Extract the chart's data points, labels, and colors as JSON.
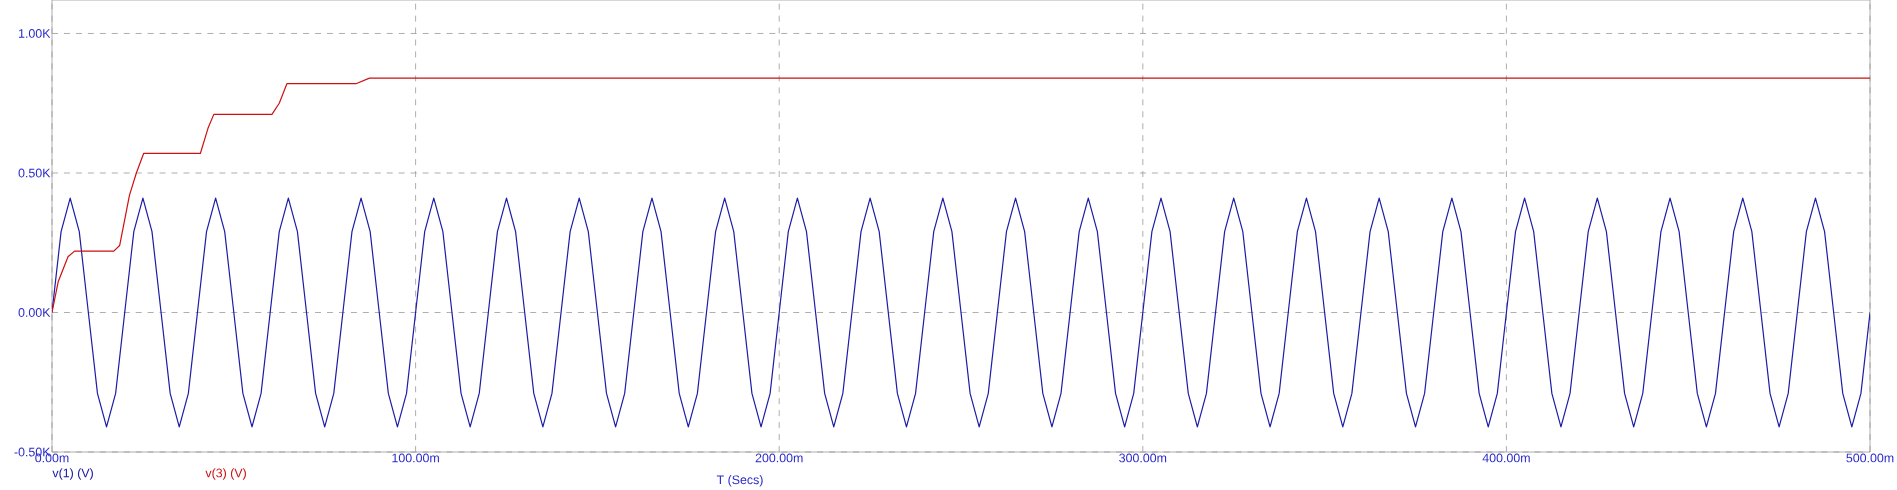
{
  "chart_data": {
    "type": "line",
    "xlabel": "T (Secs)",
    "xlim": [
      0,
      500
    ],
    "ylim": [
      -0.5,
      1.12
    ],
    "xticks": [
      {
        "value": 0,
        "label": "0.00m"
      },
      {
        "value": 100,
        "label": "100.00m"
      },
      {
        "value": 200,
        "label": "200.00m"
      },
      {
        "value": 300,
        "label": "300.00m"
      },
      {
        "value": 400,
        "label": "400.00m"
      },
      {
        "value": 500,
        "label": "500.00m"
      }
    ],
    "yticks": [
      {
        "value": -0.5,
        "label": "-0.50K"
      },
      {
        "value": 0,
        "label": "0.00K"
      },
      {
        "value": 0.5,
        "label": "0.50K"
      },
      {
        "value": 1,
        "label": "1.00K"
      }
    ],
    "grid": true,
    "legend": "bottom",
    "series": [
      {
        "name": "v(1) (V)",
        "color": "#1c1ca8",
        "x": [
          0,
          2.5,
          5,
          7.5,
          10,
          12.5,
          15,
          17.5,
          20,
          22.5,
          25,
          27.5,
          30,
          32.5,
          35,
          37.5,
          40,
          42.5,
          45,
          47.5,
          50,
          52.5,
          55,
          57.5,
          60,
          62.5,
          65,
          67.5,
          70,
          72.5,
          75,
          77.5,
          80,
          82.5,
          85,
          87.5,
          90,
          92.5,
          95,
          97.5,
          100,
          102.5,
          105,
          107.5,
          110,
          112.5,
          115,
          117.5,
          120,
          122.5,
          125,
          127.5,
          130,
          132.5,
          135,
          137.5,
          140,
          142.5,
          145,
          147.5,
          150,
          152.5,
          155,
          157.5,
          160,
          162.5,
          165,
          167.5,
          170,
          172.5,
          175,
          177.5,
          180,
          182.5,
          185,
          187.5,
          190,
          192.5,
          195,
          197.5,
          200,
          202.5,
          205,
          207.5,
          210,
          212.5,
          215,
          217.5,
          220,
          222.5,
          225,
          227.5,
          230,
          232.5,
          235,
          237.5,
          240,
          242.5,
          245,
          247.5,
          250,
          252.5,
          255,
          257.5,
          260,
          262.5,
          265,
          267.5,
          270,
          272.5,
          275,
          277.5,
          280,
          282.5,
          285,
          287.5,
          290,
          292.5,
          295,
          297.5,
          300,
          302.5,
          305,
          307.5,
          310,
          312.5,
          315,
          317.5,
          320,
          322.5,
          325,
          327.5,
          330,
          332.5,
          335,
          337.5,
          340,
          342.5,
          345,
          347.5,
          350,
          352.5,
          355,
          357.5,
          360,
          362.5,
          365,
          367.5,
          370,
          372.5,
          375,
          377.5,
          380,
          382.5,
          385,
          387.5,
          390,
          392.5,
          395,
          397.5,
          400,
          402.5,
          405,
          407.5,
          410,
          412.5,
          415,
          417.5,
          420,
          422.5,
          425,
          427.5,
          430,
          432.5,
          435,
          437.5,
          440,
          442.5,
          445,
          447.5,
          450,
          452.5,
          455,
          457.5,
          460,
          462.5,
          465,
          467.5,
          470,
          472.5,
          475,
          477.5,
          480,
          482.5,
          485,
          487.5,
          490,
          492.5,
          495,
          497.5,
          500
        ],
        "values": [
          0,
          0.29,
          0.41,
          0.29,
          0,
          -0.29,
          -0.41,
          -0.29,
          0,
          0.29,
          0.41,
          0.29,
          0,
          -0.29,
          -0.41,
          -0.29,
          0,
          0.29,
          0.41,
          0.29,
          0,
          -0.29,
          -0.41,
          -0.29,
          0,
          0.29,
          0.41,
          0.29,
          0,
          -0.29,
          -0.41,
          -0.29,
          0,
          0.29,
          0.41,
          0.29,
          0,
          -0.29,
          -0.41,
          -0.29,
          0,
          0.29,
          0.41,
          0.29,
          0,
          -0.29,
          -0.41,
          -0.29,
          0,
          0.29,
          0.41,
          0.29,
          0,
          -0.29,
          -0.41,
          -0.29,
          0,
          0.29,
          0.41,
          0.29,
          0,
          -0.29,
          -0.41,
          -0.29,
          0,
          0.29,
          0.41,
          0.29,
          0,
          -0.29,
          -0.41,
          -0.29,
          0,
          0.29,
          0.41,
          0.29,
          0,
          -0.29,
          -0.41,
          -0.29,
          0,
          0.29,
          0.41,
          0.29,
          0,
          -0.29,
          -0.41,
          -0.29,
          0,
          0.29,
          0.41,
          0.29,
          0,
          -0.29,
          -0.41,
          -0.29,
          0,
          0.29,
          0.41,
          0.29,
          0,
          -0.29,
          -0.41,
          -0.29,
          0,
          0.29,
          0.41,
          0.29,
          0,
          -0.29,
          -0.41,
          -0.29,
          0,
          0.29,
          0.41,
          0.29,
          0,
          -0.29,
          -0.41,
          -0.29,
          0,
          0.29,
          0.41,
          0.29,
          0,
          -0.29,
          -0.41,
          -0.29,
          0,
          0.29,
          0.41,
          0.29,
          0,
          -0.29,
          -0.41,
          -0.29,
          0,
          0.29,
          0.41,
          0.29,
          0,
          -0.29,
          -0.41,
          -0.29,
          0,
          0.29,
          0.41,
          0.29,
          0,
          -0.29,
          -0.41,
          -0.29,
          0,
          0.29,
          0.41,
          0.29,
          0,
          -0.29,
          -0.41,
          -0.29,
          0,
          0.29,
          0.41,
          0.29,
          0,
          -0.29,
          -0.41,
          -0.29,
          0,
          0.29,
          0.41,
          0.29,
          0,
          -0.29,
          -0.41,
          -0.29,
          0,
          0.29,
          0.41,
          0.29,
          0,
          -0.29,
          -0.41,
          -0.29,
          0,
          0.29,
          0.41,
          0.29,
          0,
          -0.29,
          -0.41,
          -0.29,
          0,
          0.29,
          0.41,
          0.29,
          0,
          -0.29,
          -0.41,
          -0.29,
          0
        ]
      },
      {
        "name": "v(3) (V)",
        "color": "#cc1111",
        "x": [
          0,
          1.7,
          4.4,
          6.2,
          17,
          18.6,
          21.3,
          23.2,
          25.2,
          40.8,
          42.9,
          44.5,
          60.5,
          62.5,
          64.6,
          83.6,
          87.3,
          500
        ],
        "values": [
          0,
          0.11,
          0.2,
          0.22,
          0.22,
          0.24,
          0.42,
          0.5,
          0.57,
          0.57,
          0.66,
          0.71,
          0.71,
          0.75,
          0.82,
          0.82,
          0.84,
          0.84
        ]
      }
    ]
  }
}
